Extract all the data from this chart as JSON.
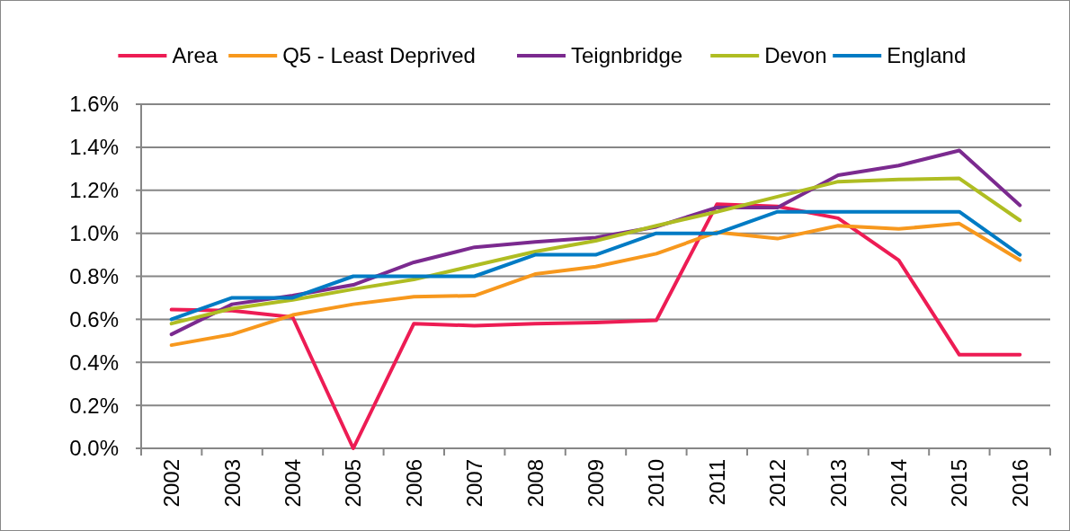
{
  "chart_data": {
    "type": "line",
    "categories": [
      "2002",
      "2003",
      "2004",
      "2005",
      "2006",
      "2007",
      "2008",
      "2009",
      "2010",
      "2011",
      "2012",
      "2013",
      "2014",
      "2015",
      "2016"
    ],
    "series": [
      {
        "name": "Area",
        "color": "#ed1c54",
        "values": [
          0.645,
          0.64,
          0.61,
          0,
          0.58,
          0.57,
          0.58,
          0.585,
          0.595,
          1.135,
          1.125,
          1.07,
          0.875,
          0.435,
          0.435
        ]
      },
      {
        "name": "Q5 - Least Deprived",
        "color": "#f7981d",
        "values": [
          0.48,
          0.53,
          0.62,
          0.67,
          0.705,
          0.71,
          0.81,
          0.845,
          0.905,
          1.005,
          0.975,
          1.035,
          1.02,
          1.045,
          0.875
        ]
      },
      {
        "name": "Teignbridge",
        "color": "#7b2a8f",
        "values": [
          0.53,
          0.67,
          0.71,
          0.76,
          0.865,
          0.935,
          0.96,
          0.98,
          1.03,
          1.12,
          1.12,
          1.27,
          1.315,
          1.385,
          1.13
        ]
      },
      {
        "name": "Devon",
        "color": "#afbd22",
        "values": [
          0.58,
          0.65,
          0.69,
          0.74,
          0.785,
          0.85,
          0.915,
          0.965,
          1.035,
          1.1,
          1.17,
          1.24,
          1.25,
          1.255,
          1.06
        ]
      },
      {
        "name": "England",
        "color": "#007bc4",
        "values": [
          0.6,
          0.7,
          0.7,
          0.8,
          0.8,
          0.8,
          0.9,
          0.9,
          1,
          1,
          1.1,
          1.1,
          1.1,
          1.1,
          0.9
        ]
      }
    ],
    "ylim": [
      0,
      1.6
    ],
    "yticks": [
      {
        "value": 0,
        "label": "0.0%"
      },
      {
        "value": 0.2,
        "label": "0.2%"
      },
      {
        "value": 0.4,
        "label": "0.4%"
      },
      {
        "value": 0.6,
        "label": "0.6%"
      },
      {
        "value": 0.8,
        "label": "0.8%"
      },
      {
        "value": 1,
        "label": "1.0%"
      },
      {
        "value": 1.2,
        "label": "1.2%"
      },
      {
        "value": 1.4,
        "label": "1.4%"
      },
      {
        "value": 1.6,
        "label": "1.6%"
      }
    ],
    "grid": "y",
    "legend": "top",
    "marker": "none",
    "line_style": "solid"
  }
}
